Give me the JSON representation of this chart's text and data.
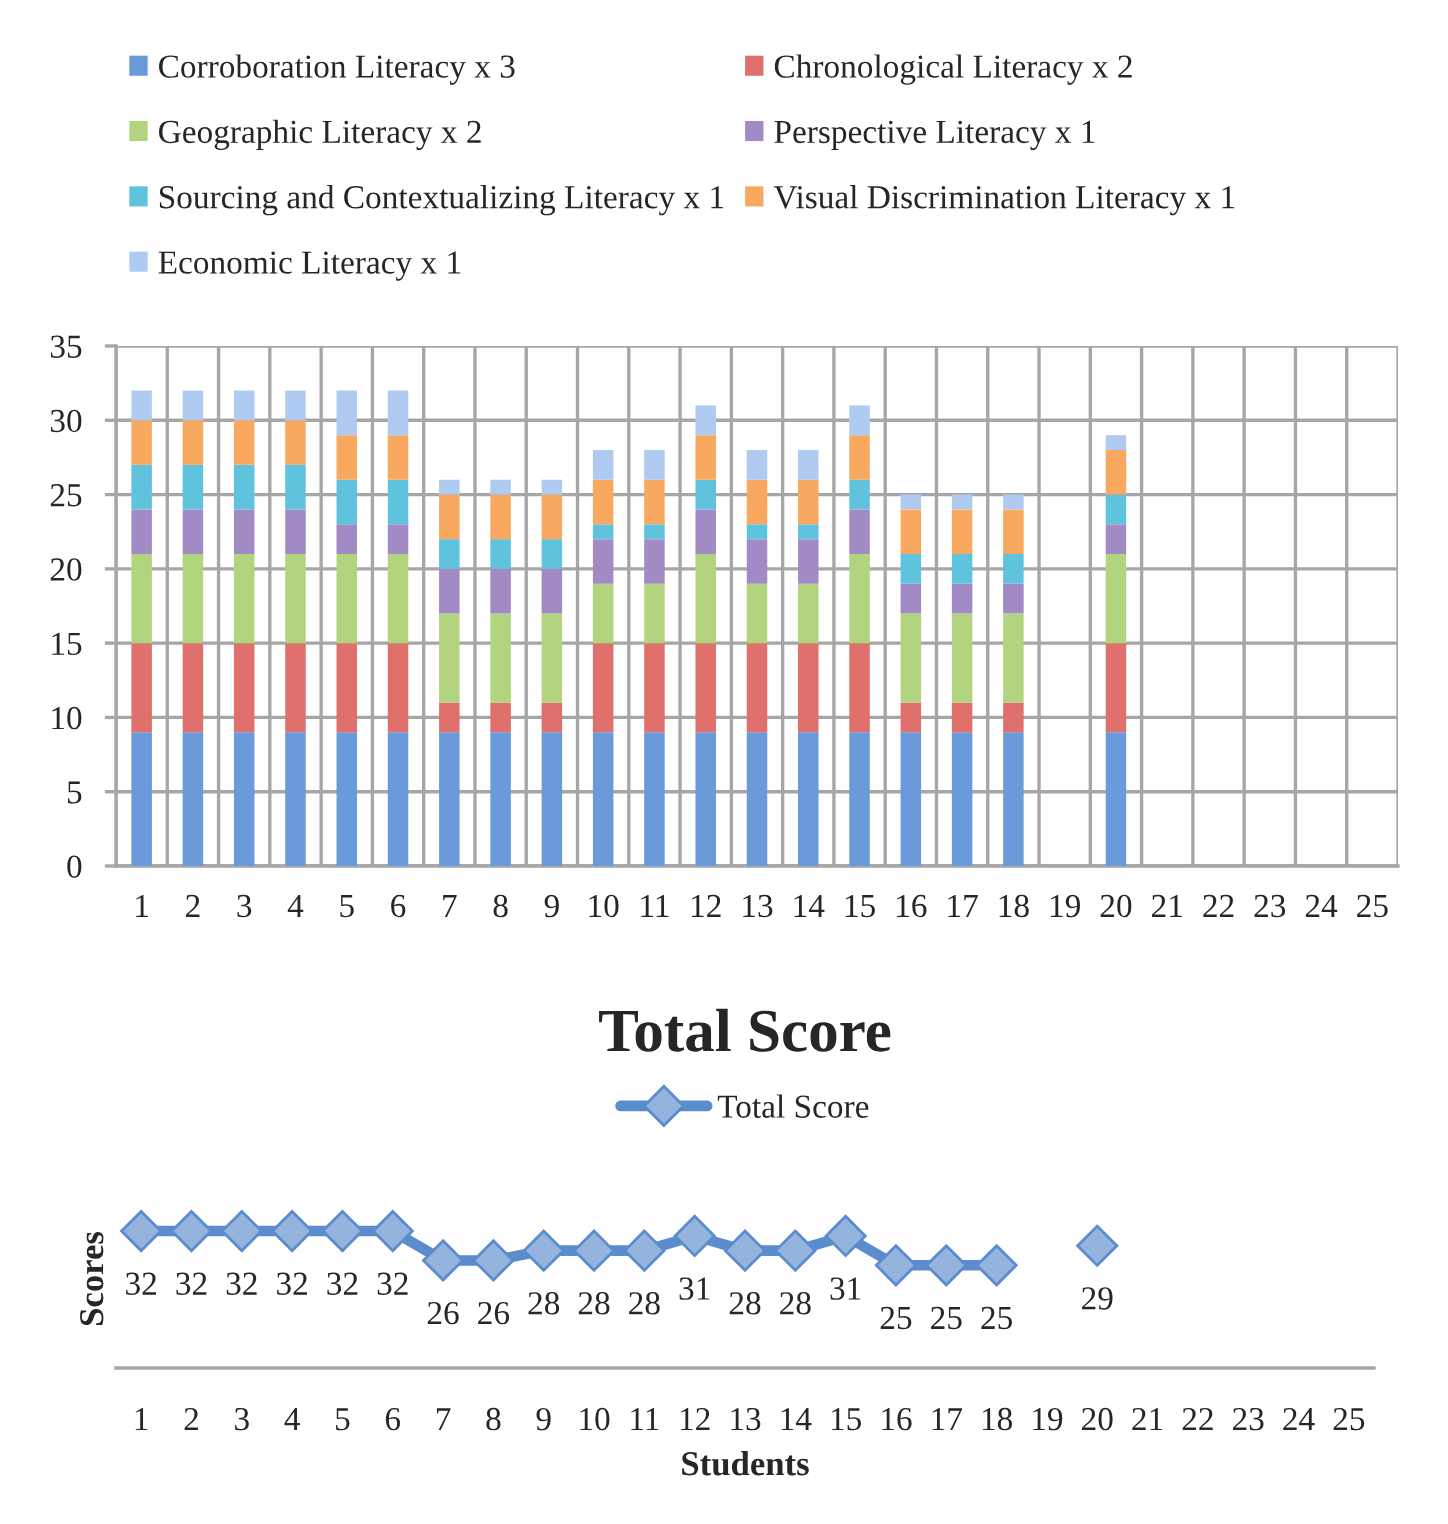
{
  "chart_data": [
    {
      "type": "bar",
      "stacked": true,
      "categories": [
        "1",
        "2",
        "3",
        "4",
        "5",
        "6",
        "7",
        "8",
        "9",
        "10",
        "11",
        "12",
        "13",
        "14",
        "15",
        "16",
        "17",
        "18",
        "19",
        "20",
        "21",
        "22",
        "23",
        "24",
        "25"
      ],
      "series": [
        {
          "name": "Corroboration Literacy x 3",
          "color": "#6a9ad9",
          "values": [
            9,
            9,
            9,
            9,
            9,
            9,
            9,
            9,
            9,
            9,
            9,
            9,
            9,
            9,
            9,
            9,
            9,
            9,
            null,
            9,
            null,
            null,
            null,
            null,
            null
          ]
        },
        {
          "name": "Chronological Literacy x 2",
          "color": "#e0706b",
          "values": [
            6,
            6,
            6,
            6,
            6,
            6,
            2,
            2,
            2,
            6,
            6,
            6,
            6,
            6,
            6,
            2,
            2,
            2,
            null,
            6,
            null,
            null,
            null,
            null,
            null
          ]
        },
        {
          "name": "Geographic Literacy x 2",
          "color": "#b3d47e",
          "values": [
            6,
            6,
            6,
            6,
            6,
            6,
            6,
            6,
            6,
            4,
            4,
            6,
            4,
            4,
            6,
            6,
            6,
            6,
            null,
            6,
            null,
            null,
            null,
            null,
            null
          ]
        },
        {
          "name": "Perspective Literacy x 1",
          "color": "#a28ac4",
          "values": [
            3,
            3,
            3,
            3,
            2,
            2,
            3,
            3,
            3,
            3,
            3,
            3,
            3,
            3,
            3,
            2,
            2,
            2,
            null,
            2,
            null,
            null,
            null,
            null,
            null
          ]
        },
        {
          "name": "Sourcing and Contextualizing Literacy x 1",
          "color": "#5fc3de",
          "values": [
            3,
            3,
            3,
            3,
            3,
            3,
            2,
            2,
            2,
            1,
            1,
            2,
            1,
            1,
            2,
            2,
            2,
            2,
            null,
            2,
            null,
            null,
            null,
            null,
            null
          ]
        },
        {
          "name": "Visual Discrimination Literacy x 1",
          "color": "#f9a95f",
          "values": [
            3,
            3,
            3,
            3,
            3,
            3,
            3,
            3,
            3,
            3,
            3,
            3,
            3,
            3,
            3,
            3,
            3,
            3,
            null,
            3,
            null,
            null,
            null,
            null,
            null
          ]
        },
        {
          "name": "Economic Literacy x 1",
          "color": "#b0cbf1",
          "values": [
            2,
            2,
            2,
            2,
            3,
            3,
            1,
            1,
            1,
            2,
            2,
            2,
            2,
            2,
            2,
            1,
            1,
            1,
            null,
            1,
            null,
            null,
            null,
            null,
            null
          ]
        }
      ],
      "ylim": [
        0,
        35
      ],
      "yticks": [
        0,
        5,
        10,
        15,
        20,
        25,
        30,
        35
      ],
      "grid": true,
      "legend": "top"
    },
    {
      "type": "line",
      "title": "Total Score",
      "xlabel": "Students",
      "ylabel": "Scores",
      "categories": [
        "1",
        "2",
        "3",
        "4",
        "5",
        "6",
        "7",
        "8",
        "9",
        "10",
        "11",
        "12",
        "13",
        "14",
        "15",
        "16",
        "17",
        "18",
        "19",
        "20",
        "21",
        "22",
        "23",
        "24",
        "25"
      ],
      "series": [
        {
          "name": "Total Score",
          "color": "#5b8ccd",
          "values": [
            32,
            32,
            32,
            32,
            32,
            32,
            26,
            26,
            28,
            28,
            28,
            31,
            28,
            28,
            31,
            25,
            25,
            25,
            null,
            29,
            null,
            null,
            null,
            null,
            null
          ]
        }
      ],
      "marker": "diamond",
      "data_labels": true,
      "tick_labels": "x",
      "legend": "top"
    }
  ]
}
